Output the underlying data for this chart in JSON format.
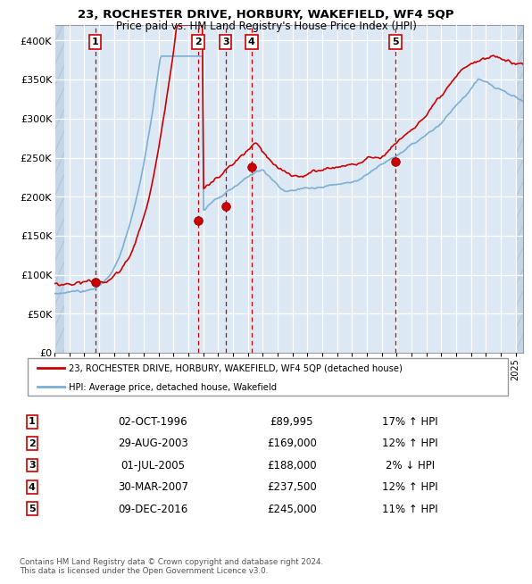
{
  "title": "23, ROCHESTER DRIVE, HORBURY, WAKEFIELD, WF4 5QP",
  "subtitle": "Price paid vs. HM Land Registry's House Price Index (HPI)",
  "year_start": 1994,
  "year_end": 2025,
  "xlim": [
    1994,
    2025.5
  ],
  "ylim": [
    0,
    420000
  ],
  "yticks": [
    0,
    50000,
    100000,
    150000,
    200000,
    250000,
    300000,
    350000,
    400000
  ],
  "ytick_labels": [
    "£0",
    "£50K",
    "£100K",
    "£150K",
    "£200K",
    "£250K",
    "£300K",
    "£350K",
    "£400K"
  ],
  "bg_color": "#dce9f5",
  "grid_color": "#ffffff",
  "red_line_color": "#cc0000",
  "blue_line_color": "#7bafd4",
  "sale_points": [
    {
      "year": 1996.75,
      "price": 89995,
      "label": "1"
    },
    {
      "year": 2003.66,
      "price": 169000,
      "label": "2"
    },
    {
      "year": 2005.5,
      "price": 188000,
      "label": "3"
    },
    {
      "year": 2007.25,
      "price": 237500,
      "label": "4"
    },
    {
      "year": 2016.92,
      "price": 245000,
      "label": "5"
    }
  ],
  "table_rows": [
    {
      "num": "1",
      "date": "02-OCT-1996",
      "price": "£89,995",
      "hpi": "17% ↑ HPI"
    },
    {
      "num": "2",
      "date": "29-AUG-2003",
      "price": "£169,000",
      "hpi": "12% ↑ HPI"
    },
    {
      "num": "3",
      "date": "01-JUL-2005",
      "price": "£188,000",
      "hpi": "2% ↓ HPI"
    },
    {
      "num": "4",
      "date": "30-MAR-2007",
      "price": "£237,500",
      "hpi": "12% ↑ HPI"
    },
    {
      "num": "5",
      "date": "09-DEC-2016",
      "price": "£245,000",
      "hpi": "11% ↑ HPI"
    }
  ],
  "legend_red": "23, ROCHESTER DRIVE, HORBURY, WAKEFIELD, WF4 5QP (detached house)",
  "legend_blue": "HPI: Average price, detached house, Wakefield",
  "footnote": "Contains HM Land Registry data © Crown copyright and database right 2024.\nThis data is licensed under the Open Government Licence v3.0."
}
